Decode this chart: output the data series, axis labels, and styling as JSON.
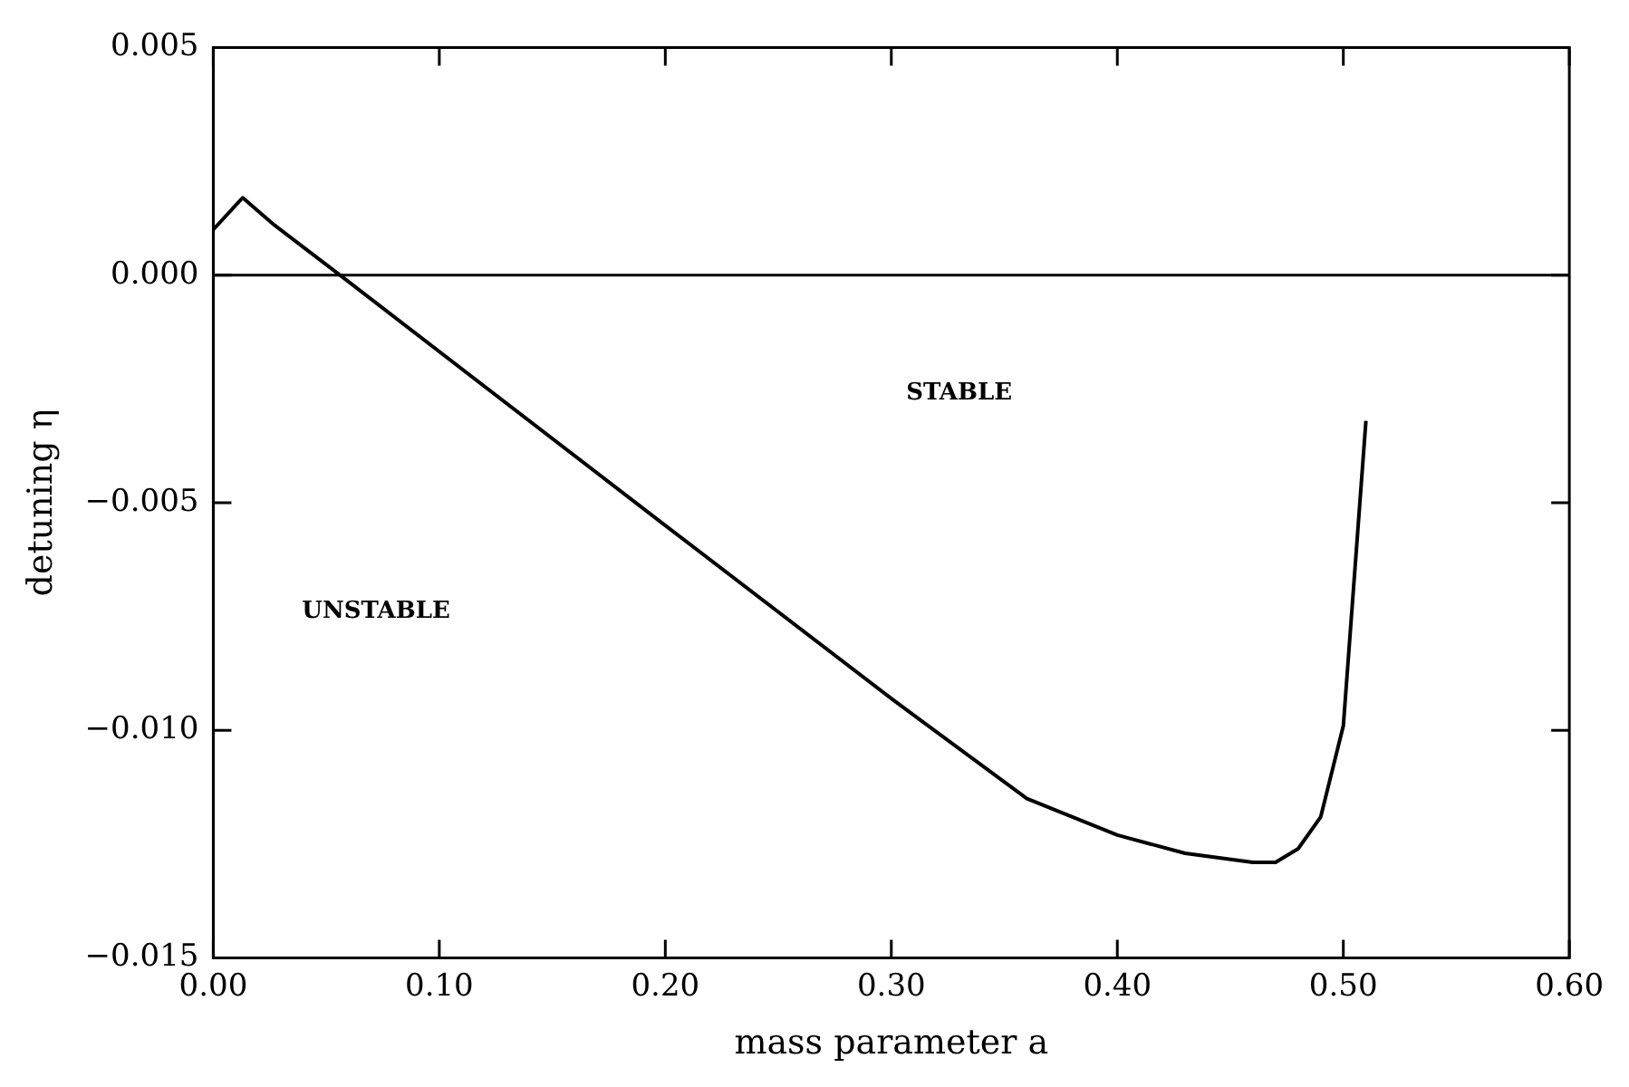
{
  "chart_data": {
    "type": "line",
    "xlabel": "mass parameter a",
    "ylabel": "detuning η",
    "x": [
      0,
      0.013,
      0.027,
      0.056,
      0.2,
      0.3,
      0.36,
      0.4,
      0.43,
      0.46,
      0.47,
      0.48,
      0.49,
      0.5,
      0.51
    ],
    "series": [
      {
        "color": "#000000",
        "values": [
          0.001,
          0.0017,
          0.0011,
          0,
          -0.0055,
          -0.0093,
          -0.0115,
          -0.0123,
          -0.0127,
          -0.0129,
          -0.0129,
          -0.0126,
          -0.0119,
          -0.0099,
          -0.0032
        ]
      }
    ],
    "xlim": [
      0,
      0.6
    ],
    "xticks": [
      {
        "value": 0,
        "label": "0.00"
      },
      {
        "value": 0.1,
        "label": "0.10"
      },
      {
        "value": 0.2,
        "label": "0.20"
      },
      {
        "value": 0.3,
        "label": "0.30"
      },
      {
        "value": 0.4,
        "label": "0.40"
      },
      {
        "value": 0.5,
        "label": "0.50"
      },
      {
        "value": 0.6,
        "label": "0.60"
      }
    ],
    "ylim": [
      -0.015,
      0.005
    ],
    "yticks": [
      {
        "value": -0.015,
        "label": "−0.015"
      },
      {
        "value": -0.01,
        "label": "−0.010"
      },
      {
        "value": -0.005,
        "label": "−0.005"
      },
      {
        "value": 0,
        "label": "0.000"
      },
      0.005
    ],
    "ref_lines": [
      {
        "axis": "y",
        "value": 0,
        "color": "#000000"
      }
    ],
    "annotations": [
      "STABLE",
      "UNSTABLE"
    ],
    "grid": false,
    "legend": false,
    "marker": "none",
    "line_style": "solid"
  }
}
